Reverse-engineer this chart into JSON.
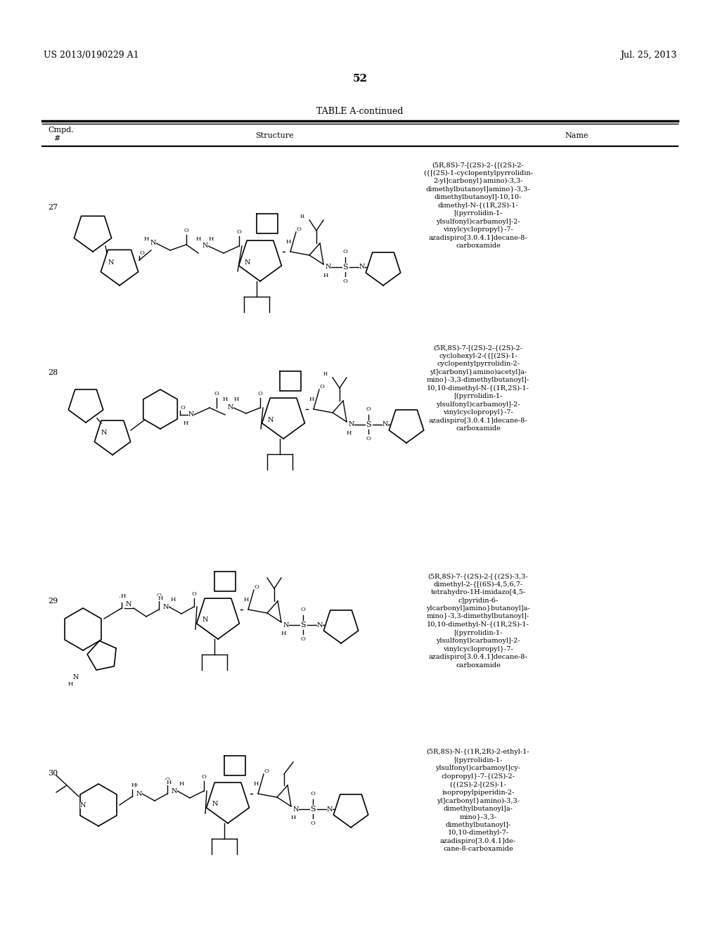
{
  "page_header_left": "US 2013/0190229 A1",
  "page_header_right": "Jul. 25, 2013",
  "page_number": "52",
  "table_title": "TABLE A-continued",
  "col_header_1": "Cmpd.\n#",
  "col_header_2": "Structure",
  "col_header_3": "Name",
  "bg": "#ffffff",
  "fg": "#000000",
  "name_27": "(5R,8S)-7-[(2S)-2-{[(2S)-2-\n({[(2S)-1-cyclopentylpyrrolidin-\n2-yl]carbonyl}amino)-3,3-\ndimethylbutanoyl]amino}-3,3-\ndimethylbutanoyl]-10,10-\ndimethyl-N-{(1R,2S)-1-\n[(pyrrolidin-1-\nylsulfonyl)carbamoyl]-2-\nvinylcyclopropyl}-7-\nazadispiro[3.0.4.1]decane-8-\ncarboxamide",
  "name_28": "(5R,8S)-7-[(2S)-2-{(2S)-2-\ncyclohexyl-2-({[(2S)-1-\ncyclopentylpyrrolidin-2-\nyl]carbonyl}amino)acetyl]a-\nmino}-3,3-dimethylbutanoyl]-\n10,10-dimethyl-N-{(1R,2S)-1-\n[(pyrrolidin-1-\nylsulfonyl)carbamoyl]-2-\nvinylcyclopropyl}-7-\nazadispiro[3.0.4.1]decane-8-\ncarboxamide",
  "name_29": "(5R,8S)-7-{(2S)-2-[{(2S)-3,3-\ndimethyl-2-{[(6S)-4,5,6,7-\ntetrahydro-1H-imidazo[4,5-\nc]pyridin-6-\nylcarbonyl]amino}butanoyl]a-\nmino}-3,3-dimethylbutanoyl]-\n10,10-dimethyl-N-{(1R,2S)-1-\n[(pyrrolidin-1-\nylsulfonyl)carbamoyl]-2-\nvinylcyclopropyl}-7-\nazadispiro[3.0.4.1]decane-8-\ncarboxamide",
  "name_30": "(5R,8S)-N-{(1R,2R)-2-ethyl-1-\n[(pyrrolidin-1-\nylsulfonyl)carbamoyl]cy-\nclopropyl}-7-{(2S)-2-\n({(2S)-2-[(2S)-1-\nisopropylpiperidin-2-\nyl]carbonyl}amino)-3,3-\ndimethylbutanoyl]a-\nmino}-3,3-\ndimethylbutanoyl]-\n10,10-dimethyl-7-\nazadispiro[3.0.4.1]de-\ncane-8-carboxamide",
  "header_fontsize": 9,
  "pagenum_fontsize": 11,
  "title_fontsize": 9,
  "col_header_fontsize": 8,
  "label_fontsize": 7,
  "name_fontsize": 7
}
